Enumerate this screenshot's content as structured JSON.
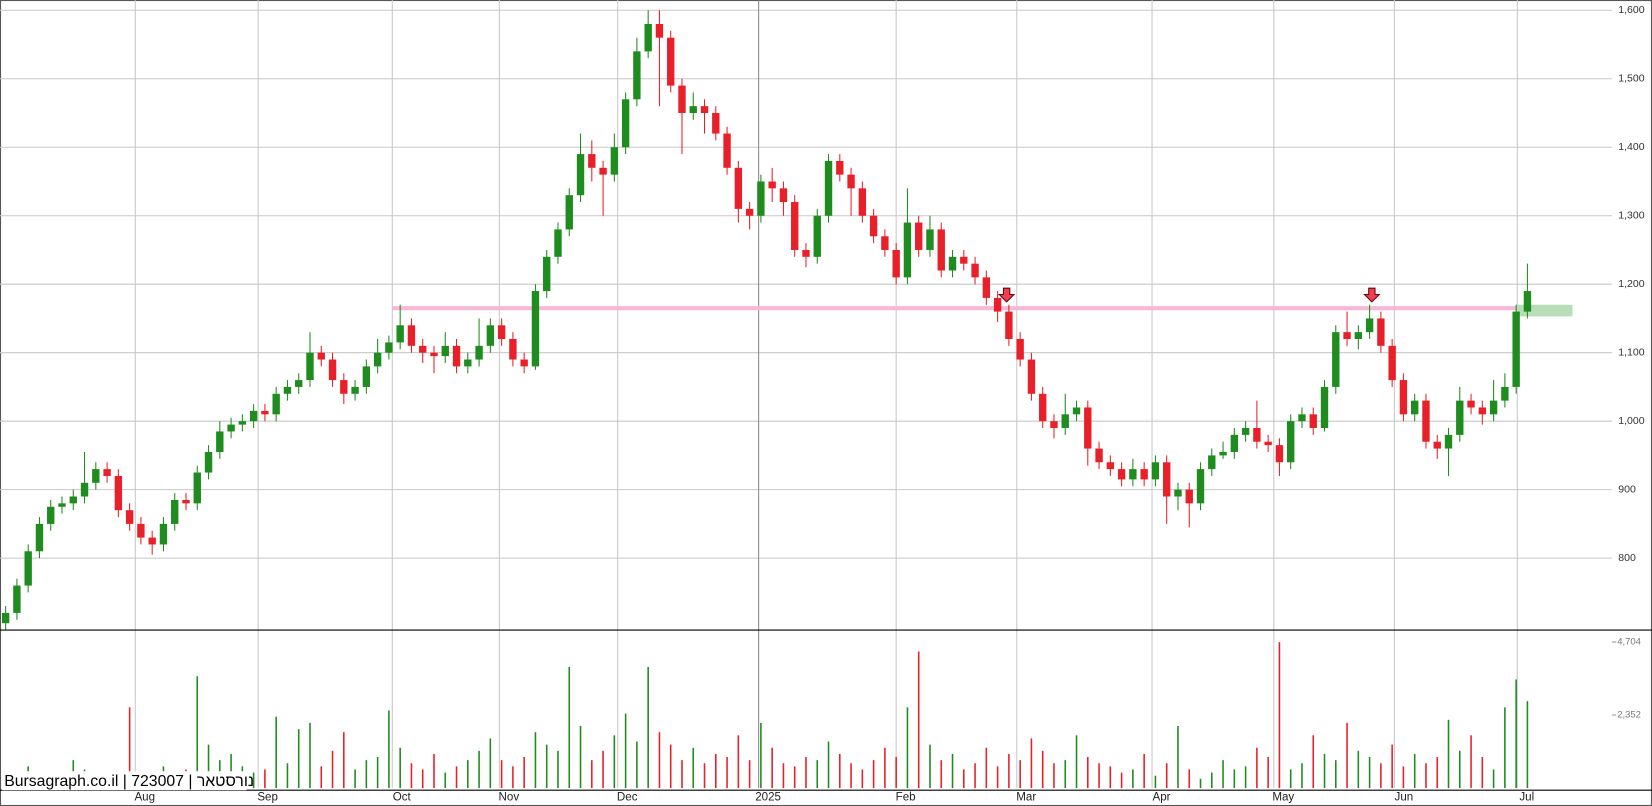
{
  "chart_data": {
    "type": "candlestick",
    "watermark": "Bursagraph.co.il | 723007 | נורסטאר",
    "open": [
      705,
      720,
      760,
      810,
      850,
      875,
      880,
      890,
      910,
      930,
      920,
      870,
      850,
      830,
      820,
      850,
      885,
      880,
      925,
      955,
      985,
      995,
      1000,
      1015,
      1010,
      1040,
      1050,
      1060,
      1100,
      1090,
      1060,
      1040,
      1050,
      1080,
      1100,
      1115,
      1140,
      1110,
      1100,
      1095,
      1110,
      1080,
      1090,
      1110,
      1140,
      1120,
      1090,
      1080,
      1190,
      1240,
      1280,
      1330,
      1390,
      1370,
      1360,
      1400,
      1470,
      1540,
      1580,
      1560,
      1490,
      1450,
      1460,
      1450,
      1420,
      1370,
      1310,
      1300,
      1350,
      1340,
      1320,
      1250,
      1240,
      1300,
      1380,
      1360,
      1340,
      1300,
      1270,
      1250,
      1210,
      1290,
      1250,
      1280,
      1220,
      1240,
      1230,
      1210,
      1180,
      1160,
      1120,
      1090,
      1040,
      1000,
      990,
      1010,
      1020,
      960,
      940,
      930,
      915,
      930,
      915,
      940,
      890,
      900,
      880,
      930,
      950,
      955,
      980,
      990,
      970,
      965,
      940,
      1000,
      1010,
      990,
      1050,
      1130,
      1120,
      1130,
      1150,
      1110,
      1060,
      1010,
      1030,
      970,
      960,
      980,
      1030,
      1020,
      1010,
      1030,
      1050,
      1160
    ],
    "high": [
      730,
      770,
      820,
      860,
      885,
      890,
      900,
      955,
      940,
      940,
      930,
      880,
      860,
      840,
      860,
      895,
      895,
      935,
      965,
      1000,
      1005,
      1010,
      1025,
      1025,
      1050,
      1060,
      1070,
      1130,
      1110,
      1100,
      1070,
      1060,
      1090,
      1120,
      1125,
      1170,
      1150,
      1120,
      1110,
      1130,
      1120,
      1100,
      1150,
      1150,
      1150,
      1130,
      1100,
      1200,
      1250,
      1290,
      1340,
      1420,
      1410,
      1380,
      1420,
      1480,
      1560,
      1600,
      1600,
      1570,
      1500,
      1480,
      1470,
      1460,
      1430,
      1380,
      1320,
      1360,
      1370,
      1350,
      1330,
      1260,
      1310,
      1390,
      1390,
      1370,
      1350,
      1310,
      1280,
      1260,
      1340,
      1300,
      1300,
      1290,
      1250,
      1250,
      1240,
      1220,
      1190,
      1170,
      1130,
      1100,
      1050,
      1010,
      1040,
      1030,
      1030,
      970,
      950,
      940,
      945,
      940,
      950,
      950,
      910,
      910,
      940,
      960,
      970,
      990,
      1000,
      1030,
      980,
      975,
      1010,
      1020,
      1020,
      1060,
      1140,
      1160,
      1140,
      1170,
      1160,
      1120,
      1070,
      1040,
      1040,
      980,
      990,
      1050,
      1040,
      1030,
      1060,
      1070,
      1170,
      1230
    ],
    "low": [
      695,
      710,
      750,
      800,
      840,
      865,
      870,
      880,
      900,
      910,
      860,
      840,
      820,
      805,
      810,
      840,
      870,
      870,
      915,
      945,
      975,
      985,
      990,
      1000,
      1000,
      1030,
      1040,
      1050,
      1080,
      1050,
      1025,
      1030,
      1040,
      1070,
      1090,
      1105,
      1100,
      1085,
      1070,
      1085,
      1070,
      1070,
      1080,
      1100,
      1110,
      1080,
      1070,
      1075,
      1180,
      1230,
      1270,
      1320,
      1350,
      1300,
      1350,
      1390,
      1460,
      1530,
      1460,
      1480,
      1390,
      1440,
      1420,
      1410,
      1360,
      1290,
      1280,
      1290,
      1320,
      1300,
      1240,
      1225,
      1230,
      1290,
      1350,
      1300,
      1290,
      1260,
      1240,
      1200,
      1200,
      1240,
      1240,
      1210,
      1210,
      1220,
      1200,
      1170,
      1145,
      1110,
      1080,
      1030,
      990,
      975,
      980,
      1000,
      935,
      930,
      920,
      905,
      905,
      905,
      905,
      850,
      870,
      845,
      870,
      920,
      945,
      945,
      970,
      960,
      955,
      920,
      930,
      990,
      980,
      985,
      1040,
      1110,
      1105,
      1120,
      1100,
      1050,
      1000,
      1000,
      960,
      945,
      920,
      970,
      1010,
      995,
      1000,
      1020,
      1040,
      1150
    ],
    "close": [
      720,
      760,
      810,
      850,
      875,
      880,
      890,
      910,
      930,
      920,
      870,
      850,
      830,
      820,
      850,
      885,
      880,
      925,
      955,
      985,
      995,
      1000,
      1015,
      1010,
      1040,
      1050,
      1060,
      1100,
      1090,
      1060,
      1040,
      1050,
      1080,
      1100,
      1115,
      1140,
      1110,
      1100,
      1095,
      1110,
      1080,
      1090,
      1110,
      1140,
      1120,
      1090,
      1080,
      1190,
      1240,
      1280,
      1330,
      1390,
      1370,
      1360,
      1400,
      1470,
      1540,
      1580,
      1560,
      1490,
      1450,
      1460,
      1450,
      1420,
      1370,
      1310,
      1300,
      1350,
      1340,
      1320,
      1250,
      1240,
      1300,
      1380,
      1360,
      1340,
      1300,
      1270,
      1250,
      1210,
      1290,
      1250,
      1280,
      1220,
      1240,
      1230,
      1210,
      1180,
      1160,
      1120,
      1090,
      1040,
      1000,
      990,
      1010,
      1020,
      960,
      940,
      930,
      915,
      930,
      915,
      940,
      890,
      900,
      880,
      930,
      950,
      955,
      980,
      990,
      970,
      965,
      940,
      1000,
      1010,
      990,
      1050,
      1130,
      1120,
      1130,
      1150,
      1110,
      1060,
      1010,
      1030,
      970,
      960,
      980,
      1030,
      1020,
      1010,
      1030,
      1050,
      1160,
      1190
    ],
    "up_color": "#1e8c1e",
    "down_color": "#e8202a",
    "xlim": [
      -0.5,
      142.5
    ],
    "xticks": [
      {
        "value": 11.5,
        "label": "Aug"
      },
      {
        "value": 22.4,
        "label": "Sep"
      },
      {
        "value": 34.3,
        "label": "Oct"
      },
      {
        "value": 43.8,
        "label": "Nov"
      },
      {
        "value": 54.3,
        "label": "Dec"
      },
      {
        "value": 66.8,
        "label": "2025"
      },
      {
        "value": 79,
        "label": "Feb"
      },
      {
        "value": 89.7,
        "label": "Mar"
      },
      {
        "value": 101.7,
        "label": "Apr"
      },
      {
        "value": 112.5,
        "label": "May"
      },
      {
        "value": 123.2,
        "label": "Jun"
      },
      {
        "value": 134.1,
        "label": "Jul"
      }
    ],
    "ylim": [
      695,
      1615
    ],
    "yticks": [
      800,
      900,
      {
        "value": 1000,
        "label": "1,000"
      },
      {
        "value": 1100,
        "label": "1,100"
      },
      {
        "value": 1200,
        "label": "1,200"
      },
      {
        "value": 1300,
        "label": "1,300"
      },
      {
        "value": 1400,
        "label": "1,400"
      },
      {
        "value": 1500,
        "label": "1,500"
      },
      {
        "value": 1600,
        "label": "1,600"
      }
    ],
    "grid": true,
    "level_line": {
      "value": 1165,
      "start": 34.3,
      "color": "#f7b8d8"
    },
    "zone": {
      "low": 1153,
      "high": 1170,
      "start": 134,
      "end": 139,
      "color": "#b8ddb8"
    },
    "signals": [
      88.8,
      121.2
    ],
    "volume": {
      "values": [
        400,
        300,
        700,
        250,
        500,
        300,
        900,
        600,
        200,
        350,
        450,
        2600,
        500,
        350,
        700,
        300,
        600,
        3600,
        1400,
        900,
        1100,
        700,
        500,
        600,
        2300,
        800,
        1900,
        2100,
        700,
        1200,
        1800,
        600,
        900,
        1000,
        2500,
        1300,
        800,
        600,
        1100,
        500,
        700,
        900,
        1200,
        1600,
        900,
        700,
        1000,
        1800,
        1400,
        1200,
        3900,
        2000,
        900,
        1200,
        1700,
        2400,
        1500,
        3900,
        1800,
        1400,
        900,
        1300,
        800,
        1100,
        1000,
        1700,
        900,
        2100,
        1300,
        800,
        700,
        1000,
        900,
        1500,
        1100,
        800,
        600,
        900,
        1300,
        1000,
        2600,
        4400,
        1400,
        900,
        1100,
        600,
        800,
        1300,
        700,
        1100,
        900,
        1600,
        1200,
        800,
        900,
        1700,
        1000,
        800,
        700,
        500,
        600,
        1100,
        400,
        800,
        2000,
        600,
        300,
        500,
        900,
        600,
        700,
        1300,
        1000,
        4700,
        600,
        800,
        1700,
        1100,
        900,
        2100,
        1200,
        1000,
        800,
        1400,
        700,
        1100,
        800,
        1000,
        2200,
        1200,
        1700,
        1000,
        600,
        2600,
        3500,
        2800
      ],
      "ylim": [
        0,
        5090
      ],
      "yticks": [
        {
          "value": 2352,
          "label": "2,352"
        },
        {
          "value": 4704,
          "label": "4,704"
        }
      ]
    }
  }
}
